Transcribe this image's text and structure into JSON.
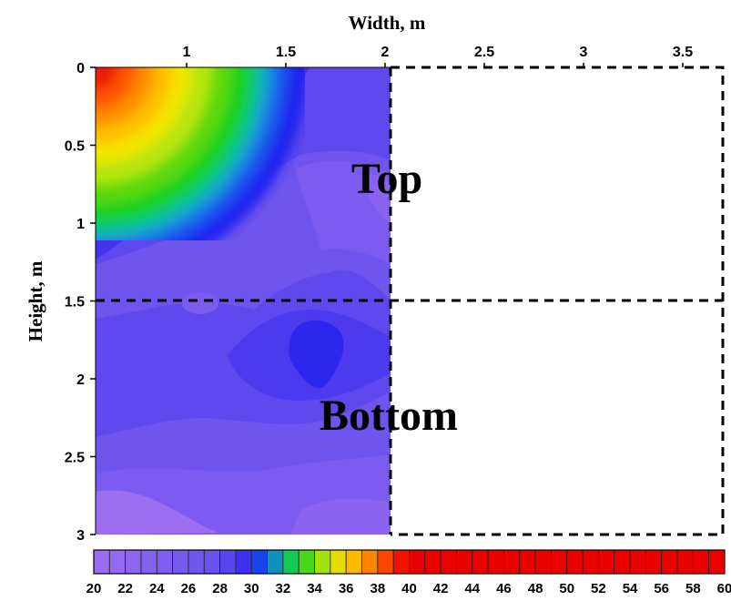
{
  "chart_data": {
    "type": "heatmap",
    "xlabel": "Width, m",
    "ylabel": "Height, m",
    "x_ticks": [
      "1",
      "1.5",
      "2",
      "2.5",
      "3",
      "3.5"
    ],
    "y_ticks": [
      "0",
      "0.5",
      "1",
      "1.5",
      "2",
      "2.5",
      "3"
    ],
    "xlim": [
      0.55,
      3.7
    ],
    "ylim": [
      0,
      3
    ],
    "y_axis": "inverted",
    "x_axis_position": "top",
    "measured_extent": {
      "x": [
        0.55,
        2.02
      ],
      "y": [
        0,
        3
      ]
    },
    "colorbar": {
      "ticks": [
        "20",
        "22",
        "24",
        "26",
        "28",
        "30",
        "32",
        "34",
        "36",
        "38",
        "40",
        "42",
        "44",
        "46",
        "48",
        "50",
        "52",
        "54",
        "56",
        "58",
        "60"
      ],
      "min": 20,
      "max": 60,
      "step": 1
    },
    "value_levels": [
      {
        "label": "~28",
        "color": "#9c6ef2"
      },
      {
        "label": "~27",
        "color": "#8a64f0"
      },
      {
        "label": "~26",
        "color": "#7c5cf0"
      },
      {
        "label": "~25",
        "color": "#6f55ee"
      },
      {
        "label": "~24",
        "color": "#5f48ee"
      },
      {
        "label": "~30",
        "color": "#1d23ee"
      }
    ],
    "hot_spot": {
      "location": "top-left corner",
      "peak_value": 40
    },
    "regions": [
      {
        "label": "Top",
        "y_range": [
          0,
          1.5
        ]
      },
      {
        "label": "Bottom",
        "y_range": [
          1.5,
          3
        ]
      }
    ],
    "divider": {
      "y": 1.5,
      "x": 2.02,
      "style": "dashed"
    }
  }
}
